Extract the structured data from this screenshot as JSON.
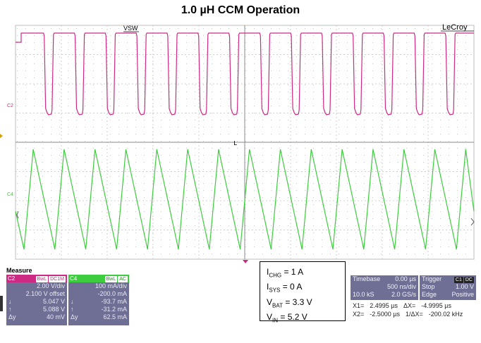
{
  "title": "1.0 µH CCM Operation",
  "scope": {
    "brand": "LeCroy",
    "trace_label": "VSW",
    "c2_label": "C2",
    "c4_label": "C4",
    "trigger_marker": "L"
  },
  "measure": {
    "heading": "Measure",
    "value_label": "value",
    "status_label": "status"
  },
  "channel_c2": {
    "name": "C2",
    "tags": [
      "BwL",
      "DC1M"
    ],
    "volts_div": "2.00 V/div",
    "offset": "2.100 V offset",
    "rows": [
      {
        "sym": "↓",
        "val": "5.047 V"
      },
      {
        "sym": "↑",
        "val": "5.088 V"
      },
      {
        "sym": "Δy",
        "val": "40 mV"
      }
    ]
  },
  "channel_c4": {
    "name": "C4",
    "tags": [
      "BwL",
      "AC"
    ],
    "volts_div": "100 mA/div",
    "offset": "-200.0 mA",
    "rows": [
      {
        "sym": "↓",
        "val": "-93.7 mA"
      },
      {
        "sym": "↑",
        "val": "-31.2 mA"
      },
      {
        "sym": "Δy",
        "val": "62.5 mA"
      }
    ]
  },
  "conditions": {
    "ichg": "= 1 A",
    "isys": "= 0 A",
    "vbat": "= 3.3 V",
    "vin": "= 5.2 V"
  },
  "timebase": {
    "label": "Timebase",
    "delay": "0.00 µs",
    "per_div": "500 ns/div",
    "samples": "10.0 kS",
    "rate": "2.0 GS/s"
  },
  "trigger": {
    "label": "Trigger",
    "source": "C1",
    "coupling": "DC",
    "mode": "Stop",
    "level": "1.00 V",
    "type": "Edge",
    "slope": "Positive"
  },
  "cursors": {
    "x1_label": "X1=",
    "x1": "2.4995 µs",
    "dx_label": "ΔX=",
    "dx": "-4.9995 µs",
    "x2_label": "X2=",
    "x2": "-2.5000 µs",
    "inv_label": "1/ΔX=",
    "inv": "-200.02 kHz"
  },
  "colors": {
    "c2": "#cc2a83",
    "c4": "#3dcc3d",
    "panel": "#6f6f95",
    "grid": "#9a9a9a"
  }
}
